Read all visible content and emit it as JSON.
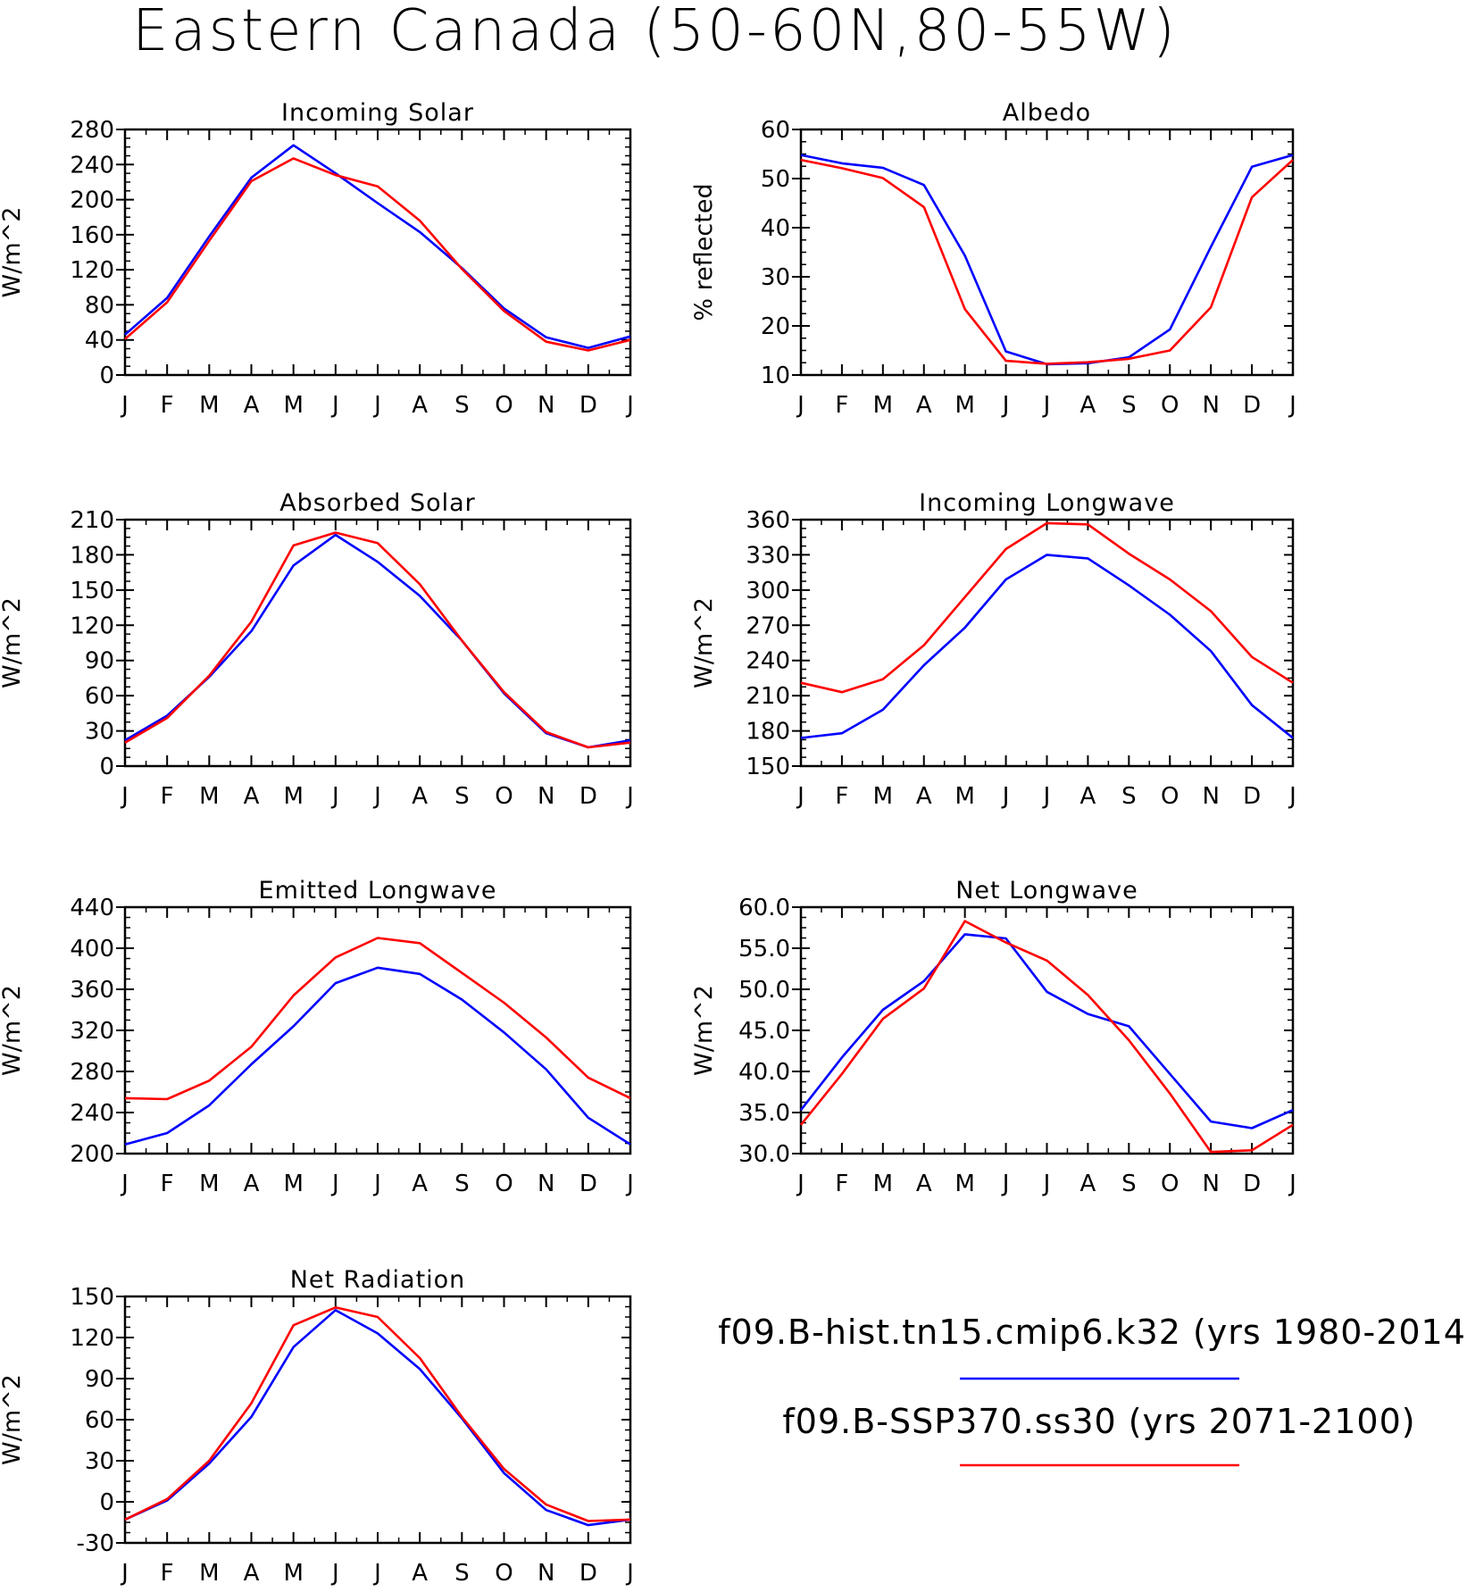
{
  "figure_title": "Eastern Canada (50-60N,80-55W)",
  "legend": {
    "entries": [
      {
        "label": "f09.B-hist.tn15.cmip6.k32 (yrs 1980-2014)",
        "color": "#0000ff"
      },
      {
        "label": "f09.B-SSP370.ss30 (yrs 2071-2100)",
        "color": "#ff0000"
      }
    ]
  },
  "colors": {
    "hist": "#0000ff",
    "ssp370": "#ff0000",
    "axis": "#000000"
  },
  "chart_data": [
    {
      "type": "line",
      "title": "Incoming Solar",
      "ylabel": "W/m^2",
      "categories": [
        "J",
        "F",
        "M",
        "A",
        "M",
        "J",
        "J",
        "A",
        "S",
        "O",
        "N",
        "D",
        "J"
      ],
      "ylim": [
        0,
        280
      ],
      "yticks": [
        "0",
        "40",
        "80",
        "120",
        "160",
        "200",
        "240",
        "280"
      ],
      "series": [
        {
          "color": "#0000ff",
          "values": [
            46,
            88,
            158,
            225,
            262,
            230,
            196,
            163,
            122,
            76,
            43,
            31,
            44
          ]
        },
        {
          "color": "#ff0000",
          "values": [
            41,
            83,
            153,
            221,
            247,
            228,
            215,
            176,
            121,
            73,
            38,
            28,
            40
          ]
        }
      ]
    },
    {
      "type": "line",
      "title": "Albedo",
      "ylabel": "% reflected",
      "categories": [
        "J",
        "F",
        "M",
        "A",
        "M",
        "J",
        "J",
        "A",
        "S",
        "O",
        "N",
        "D",
        "J"
      ],
      "ylim": [
        10,
        60
      ],
      "yticks": [
        "10",
        "20",
        "30",
        "40",
        "50",
        "60"
      ],
      "series": [
        {
          "color": "#0000ff",
          "values": [
            54.8,
            53.1,
            52.2,
            48.7,
            34.3,
            14.8,
            12.2,
            12.4,
            13.6,
            19.3,
            36.1,
            52.4,
            54.8
          ]
        },
        {
          "color": "#ff0000",
          "values": [
            53.8,
            52.1,
            50.1,
            44.2,
            23.4,
            12.9,
            12.3,
            12.6,
            13.3,
            15.0,
            23.8,
            46.2,
            53.8
          ]
        }
      ]
    },
    {
      "type": "line",
      "title": "Absorbed Solar",
      "ylabel": "W/m^2",
      "categories": [
        "J",
        "F",
        "M",
        "A",
        "M",
        "J",
        "J",
        "A",
        "S",
        "O",
        "N",
        "D",
        "J"
      ],
      "ylim": [
        0,
        210
      ],
      "yticks": [
        "0",
        "30",
        "60",
        "90",
        "120",
        "150",
        "180",
        "210"
      ],
      "series": [
        {
          "color": "#0000ff",
          "values": [
            22,
            43,
            76,
            115,
            171,
            197,
            174,
            145,
            107,
            62,
            28,
            16,
            22
          ]
        },
        {
          "color": "#ff0000",
          "values": [
            20,
            41,
            77,
            123,
            188,
            199,
            190,
            155,
            107,
            63,
            29,
            16,
            20
          ]
        }
      ]
    },
    {
      "type": "line",
      "title": "Incoming Longwave",
      "ylabel": "W/m^2",
      "categories": [
        "J",
        "F",
        "M",
        "A",
        "M",
        "J",
        "J",
        "A",
        "S",
        "O",
        "N",
        "D",
        "J"
      ],
      "ylim": [
        150,
        360
      ],
      "yticks": [
        "150",
        "180",
        "210",
        "240",
        "270",
        "300",
        "330",
        "360"
      ],
      "series": [
        {
          "color": "#0000ff",
          "values": [
            174,
            178,
            198,
            236,
            268,
            309,
            330,
            327,
            304,
            279,
            248,
            202,
            174
          ]
        },
        {
          "color": "#ff0000",
          "values": [
            221,
            213,
            224,
            253,
            294,
            335,
            357,
            356,
            331,
            309,
            282,
            243,
            221
          ]
        }
      ]
    },
    {
      "type": "line",
      "title": "Emitted Longwave",
      "ylabel": "W/m^2",
      "categories": [
        "J",
        "F",
        "M",
        "A",
        "M",
        "J",
        "J",
        "A",
        "S",
        "O",
        "N",
        "D",
        "J"
      ],
      "ylim": [
        200,
        440
      ],
      "yticks": [
        "200",
        "240",
        "280",
        "320",
        "360",
        "400",
        "440"
      ],
      "series": [
        {
          "color": "#0000ff",
          "values": [
            209,
            220,
            247,
            287,
            324,
            366,
            381,
            375,
            350,
            318,
            282,
            235,
            209
          ]
        },
        {
          "color": "#ff0000",
          "values": [
            254,
            253,
            271,
            304,
            354,
            391,
            410,
            405,
            376,
            347,
            313,
            274,
            254
          ]
        }
      ]
    },
    {
      "type": "line",
      "title": "Net Longwave",
      "ylabel": "W/m^2",
      "categories": [
        "J",
        "F",
        "M",
        "A",
        "M",
        "J",
        "J",
        "A",
        "S",
        "O",
        "N",
        "D",
        "J"
      ],
      "ylim": [
        30,
        60
      ],
      "yticks": [
        "30.0",
        "35.0",
        "40.0",
        "45.0",
        "50.0",
        "55.0",
        "60.0"
      ],
      "series": [
        {
          "color": "#0000ff",
          "values": [
            35.3,
            41.7,
            47.5,
            51.0,
            56.7,
            56.2,
            49.7,
            47.0,
            45.5,
            39.7,
            33.9,
            33.1,
            35.3
          ]
        },
        {
          "color": "#ff0000",
          "values": [
            33.5,
            39.7,
            46.4,
            50.1,
            58.3,
            55.7,
            53.5,
            49.3,
            43.8,
            37.3,
            30.2,
            30.4,
            33.5
          ]
        }
      ]
    },
    {
      "type": "line",
      "title": "Net Radiation",
      "ylabel": "W/m^2",
      "categories": [
        "J",
        "F",
        "M",
        "A",
        "M",
        "J",
        "J",
        "A",
        "S",
        "O",
        "N",
        "D",
        "J"
      ],
      "ylim": [
        -30,
        150
      ],
      "yticks": [
        "-30",
        "0",
        "30",
        "60",
        "90",
        "120",
        "150"
      ],
      "series": [
        {
          "color": "#0000ff",
          "values": [
            -13,
            1,
            28,
            62,
            113,
            140,
            123,
            97,
            61,
            21,
            -6,
            -17,
            -13
          ]
        },
        {
          "color": "#ff0000",
          "values": [
            -13,
            2,
            30,
            72,
            129,
            142,
            135,
            105,
            62,
            24,
            -2,
            -14,
            -13
          ]
        }
      ]
    }
  ]
}
